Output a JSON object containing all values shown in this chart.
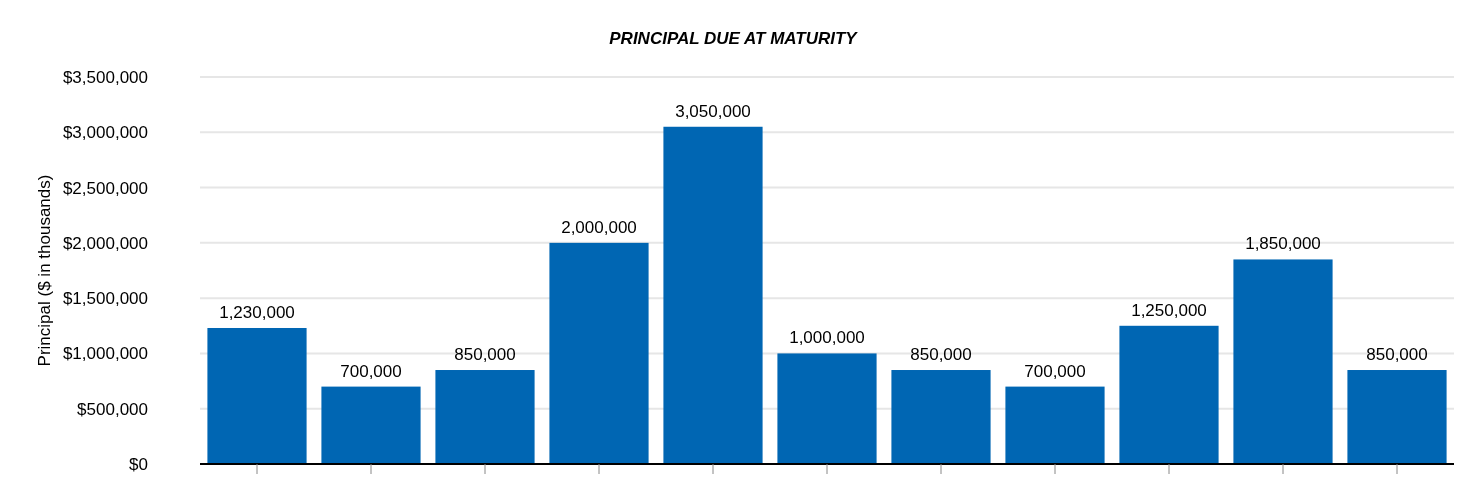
{
  "chart_data": {
    "type": "bar",
    "title": "PRINCIPAL DUE AT MATURITY",
    "ylabel": "Principal ($ in thousands)",
    "categories": [
      null,
      null,
      null,
      null,
      null,
      null,
      null,
      null,
      null,
      null,
      null
    ],
    "values": [
      1230000,
      700000,
      850000,
      2000000,
      3050000,
      1000000,
      850000,
      700000,
      1250000,
      1850000,
      850000
    ],
    "value_labels": [
      "1,230,000",
      "700,000",
      "850,000",
      "2,000,000",
      "3,050,000",
      "1,000,000",
      "850,000",
      "700,000",
      "1,250,000",
      "1,850,000",
      "850,000"
    ],
    "color": "#0066b3",
    "grid": "y",
    "ylim": [
      0,
      3500000
    ],
    "yticks": [
      {
        "value": 0,
        "label": "$0"
      },
      {
        "value": 500000,
        "label": "$500,000"
      },
      {
        "value": 1000000,
        "label": "$1,000,000"
      },
      {
        "value": 1500000,
        "label": "$1,500,000"
      },
      {
        "value": 2000000,
        "label": "$2,000,000"
      },
      {
        "value": 2500000,
        "label": "$2,500,000"
      },
      {
        "value": 3000000,
        "label": "$3,000,000"
      },
      {
        "value": 3500000,
        "label": "$3,500,000"
      }
    ]
  }
}
